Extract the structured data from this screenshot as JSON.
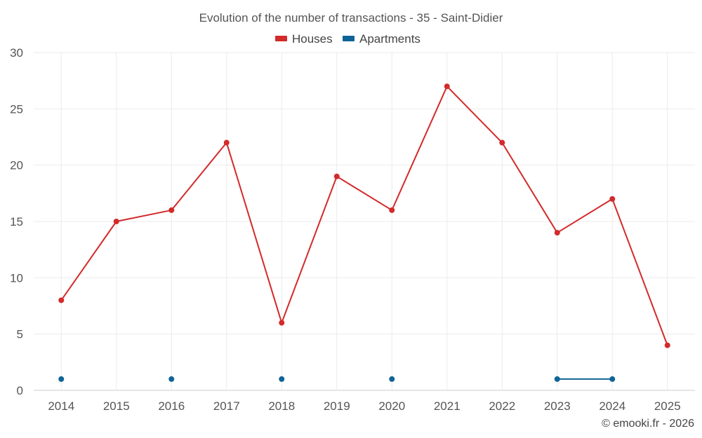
{
  "chart_data": {
    "type": "line",
    "title": "Evolution of the number of transactions - 35 - Saint-Didier",
    "categories": [
      "2014",
      "2015",
      "2016",
      "2017",
      "2018",
      "2019",
      "2020",
      "2021",
      "2022",
      "2023",
      "2024",
      "2025"
    ],
    "series": [
      {
        "name": "Houses",
        "color": "#d32a2a",
        "values": [
          8,
          15,
          16,
          22,
          6,
          19,
          16,
          27,
          22,
          14,
          17,
          4
        ]
      },
      {
        "name": "Apartments",
        "color": "#0f6497",
        "values": [
          1,
          null,
          1,
          null,
          1,
          null,
          1,
          null,
          null,
          1,
          1,
          null
        ]
      }
    ],
    "ylim": [
      0,
      30
    ],
    "yticks": [
      "0",
      "5",
      "10",
      "15",
      "20",
      "25",
      "30"
    ],
    "grid": true,
    "legend": "top-center",
    "xlabel": "",
    "ylabel": ""
  },
  "credit": "© emooki.fr - 2026"
}
